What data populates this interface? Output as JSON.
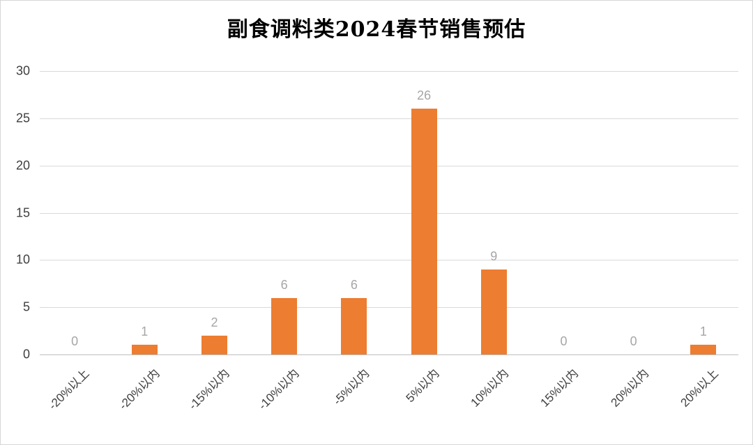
{
  "chart_data": {
    "type": "bar",
    "title": "副食调料类2024春节销售预估",
    "categories": [
      "-20%以上",
      "-20%以内",
      "-15%以内",
      "-10%以内",
      "-5%以内",
      "5%以内",
      "10%以内",
      "15%以内",
      "20%以内",
      "20%以上"
    ],
    "values": [
      0,
      1,
      2,
      6,
      6,
      26,
      9,
      0,
      0,
      1
    ],
    "ylim": [
      0,
      30
    ],
    "ytick_step": 5,
    "yticks": [
      0,
      5,
      10,
      15,
      20,
      25,
      30
    ],
    "grid": true,
    "legend": "none",
    "bar_color": "#ED7D31",
    "value_label_color": "#A6A6A6",
    "axis_text_color": "#404040",
    "gridline_color": "#D9D9D9",
    "axis_line_color": "#BFBFBF"
  }
}
